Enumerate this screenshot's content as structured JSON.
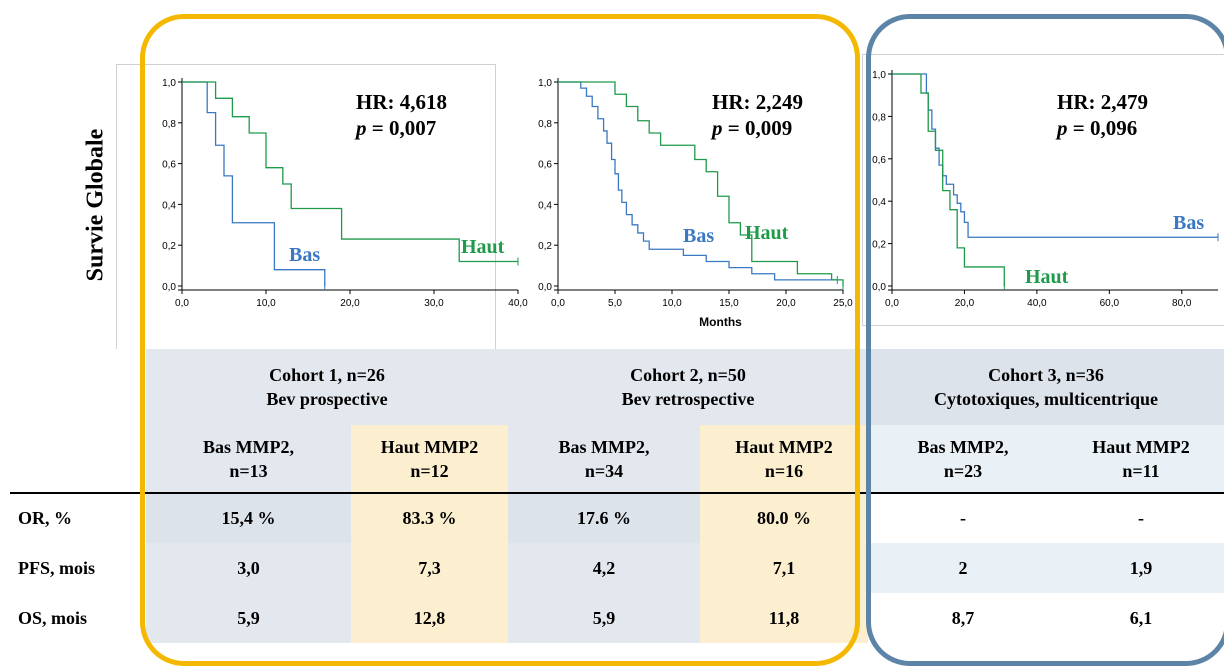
{
  "y_axis_title": "Survie Globale",
  "x_axis_title": "Months",
  "panels": [
    {
      "hr": "HR: 4,618",
      "p": "p = 0,007",
      "p_italic": "p",
      "p_rest": " = 0,007",
      "low_label": "Bas",
      "high_label": "Haut",
      "y_ticks": [
        "1,0",
        "0,8",
        "0,6",
        "0,4",
        "0,2",
        "0,0"
      ],
      "x_ticks": [
        "0,0",
        "10,0",
        "20,0",
        "30,0",
        "40,0"
      ]
    },
    {
      "hr": "HR: 2,249",
      "p_italic": "p",
      "p_rest": " = 0,009",
      "low_label": "Bas",
      "high_label": "Haut",
      "y_ticks": [
        "1,0",
        "0,8",
        "0,6",
        "0,4",
        "0,2",
        "0,0"
      ],
      "x_ticks": [
        "0,0",
        "5,0",
        "10,0",
        "15,0",
        "20,0",
        "25,0"
      ]
    },
    {
      "hr": "HR: 2,479",
      "p_italic": "p",
      "p_rest": " = 0,096",
      "low_label": "Bas",
      "high_label": "Haut",
      "y_ticks": [
        "1,0",
        "0,8",
        "0,6",
        "0,4",
        "0,2",
        "0,0"
      ],
      "x_ticks": [
        "0,0",
        "20,0",
        "40,0",
        "60,0",
        "80,0"
      ]
    }
  ],
  "colors": {
    "low": "#3a78c3",
    "high": "#1f9a4a",
    "cohort12_frame": "#f5b800",
    "cohort3_frame": "#5c84a6"
  },
  "chart_data": [
    {
      "type": "line",
      "xlim": [
        0,
        40
      ],
      "ylim": [
        0,
        1
      ],
      "series": [
        {
          "name": "Bas",
          "x": [
            0,
            3,
            3,
            4,
            4,
            5,
            5,
            6,
            6,
            11,
            11,
            17,
            17
          ],
          "y": [
            1,
            1,
            0.85,
            0.85,
            0.69,
            0.69,
            0.54,
            0.54,
            0.31,
            0.31,
            0.08,
            0.08,
            0
          ]
        },
        {
          "name": "Haut",
          "x": [
            0,
            4,
            4,
            6,
            6,
            8,
            8,
            10,
            10,
            12,
            12,
            13,
            13,
            19,
            19,
            25,
            25,
            33,
            33,
            40
          ],
          "y": [
            1,
            1,
            0.92,
            0.92,
            0.83,
            0.83,
            0.75,
            0.75,
            0.58,
            0.58,
            0.5,
            0.5,
            0.38,
            0.38,
            0.23,
            0.23,
            0.23,
            0.23,
            0.12,
            0.12
          ]
        }
      ]
    },
    {
      "type": "line",
      "xlim": [
        0,
        25
      ],
      "ylim": [
        0,
        1
      ],
      "series": [
        {
          "name": "Bas",
          "x": [
            0,
            2,
            2.5,
            3,
            3.5,
            4,
            4.3,
            4.7,
            5,
            5.3,
            5.6,
            6,
            6.5,
            7,
            7.5,
            8,
            9,
            10,
            11,
            13,
            15,
            17,
            19,
            24.5
          ],
          "y": [
            1,
            0.97,
            0.93,
            0.88,
            0.82,
            0.76,
            0.7,
            0.62,
            0.55,
            0.47,
            0.41,
            0.35,
            0.3,
            0.26,
            0.22,
            0.18,
            0.18,
            0.18,
            0.15,
            0.12,
            0.09,
            0.06,
            0.03,
            0.03
          ]
        },
        {
          "name": "Haut",
          "x": [
            0,
            5,
            5,
            6,
            6,
            7,
            7,
            8,
            8,
            9,
            9,
            12,
            12,
            13,
            13,
            14,
            14,
            15,
            15,
            16,
            16,
            17,
            17,
            21,
            21,
            24,
            24,
            25,
            25
          ],
          "y": [
            1,
            1,
            0.94,
            0.94,
            0.88,
            0.88,
            0.81,
            0.81,
            0.75,
            0.75,
            0.69,
            0.69,
            0.62,
            0.62,
            0.56,
            0.56,
            0.44,
            0.44,
            0.31,
            0.31,
            0.25,
            0.25,
            0.12,
            0.12,
            0.06,
            0.06,
            0.03,
            0.03,
            0
          ]
        }
      ]
    },
    {
      "type": "line",
      "xlim": [
        0,
        90
      ],
      "ylim": [
        0,
        1
      ],
      "series": [
        {
          "name": "Bas",
          "x": [
            0,
            9,
            9.5,
            10,
            11,
            12,
            13,
            14,
            15,
            17,
            18,
            19,
            20,
            21,
            21,
            74,
            78,
            90
          ],
          "y": [
            1,
            1,
            0.91,
            0.83,
            0.74,
            0.65,
            0.57,
            0.52,
            0.48,
            0.43,
            0.39,
            0.35,
            0.3,
            0.26,
            0.23,
            0.23,
            0.23,
            0.23
          ]
        },
        {
          "name": "Haut",
          "x": [
            0,
            8,
            8,
            10,
            10,
            12,
            12,
            14,
            14,
            16,
            16,
            18,
            18,
            20,
            20,
            31,
            31
          ],
          "y": [
            1,
            1,
            0.91,
            0.91,
            0.73,
            0.73,
            0.64,
            0.64,
            0.45,
            0.45,
            0.36,
            0.36,
            0.18,
            0.18,
            0.09,
            0.09,
            0
          ]
        }
      ]
    }
  ],
  "table": {
    "cohorts": [
      {
        "title": "Cohort 1, n=26",
        "subtitle": "Bev prospective"
      },
      {
        "title": "Cohort 2, n=50",
        "subtitle": "Bev retrospective"
      },
      {
        "title": "Cohort 3, n=36",
        "subtitle": "Cytotoxiques, multicentrique"
      }
    ],
    "groups": [
      [
        "Bas MMP2,",
        "n=13"
      ],
      [
        "Haut MMP2",
        "n=12"
      ],
      [
        "Bas MMP2,",
        "n=34"
      ],
      [
        "Haut MMP2",
        "n=16"
      ],
      [
        "Bas MMP2,",
        "n=23"
      ],
      [
        "Haut MMP2",
        "n=11"
      ]
    ],
    "rows": [
      {
        "label": "OR, %",
        "values": [
          "15,4 %",
          "83.3 %",
          "17.6 %",
          "80.0 %",
          "-",
          "-"
        ]
      },
      {
        "label": "PFS, mois",
        "values": [
          "3,0",
          "7,3",
          "4,2",
          "7,1",
          "2",
          "1,9"
        ]
      },
      {
        "label": "OS, mois",
        "values": [
          "5,9",
          "12,8",
          "5,9",
          "11,8",
          "8,7",
          "6,1"
        ]
      }
    ]
  }
}
